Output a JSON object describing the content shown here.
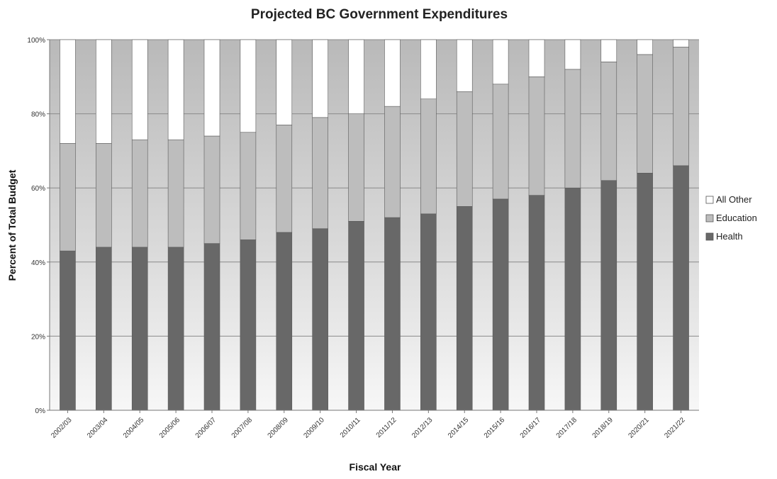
{
  "chart_data": {
    "type": "bar",
    "stacked": true,
    "percent_stacked": true,
    "title": "Projected BC Government Expenditures",
    "xlabel": "Fiscal Year",
    "ylabel": "Percent of Total Budget",
    "ylim": [
      0,
      100
    ],
    "yticks": [
      "0%",
      "20%",
      "40%",
      "60%",
      "80%",
      "100%"
    ],
    "ytick_values": [
      0,
      20,
      40,
      60,
      80,
      100
    ],
    "grid": true,
    "legend_position": "right",
    "categories": [
      "2002/03",
      "2003/04",
      "2004/05",
      "2005/06",
      "2006/07",
      "2007/08",
      "2008/09",
      "2009/10",
      "2010/11",
      "2011/12",
      "2012/13",
      "2014/15",
      "2015/16",
      "2016/17",
      "2017/18",
      "2018/19",
      "2020/21",
      "2021/22"
    ],
    "series": [
      {
        "name": "Health",
        "color": "#686868",
        "values": [
          43,
          44,
          44,
          44,
          45,
          46,
          48,
          49,
          51,
          52,
          53,
          55,
          57,
          58,
          60,
          62,
          64,
          66
        ]
      },
      {
        "name": "Education",
        "color": "#bdbdbd",
        "values": [
          29,
          28,
          29,
          29,
          29,
          29,
          29,
          30,
          29,
          30,
          31,
          31,
          31,
          32,
          32,
          32,
          32,
          32
        ]
      },
      {
        "name": "All Other",
        "color": "#ffffff",
        "values": [
          28,
          28,
          27,
          27,
          26,
          25,
          23,
          21,
          20,
          18,
          16,
          14,
          12,
          10,
          8,
          6,
          4,
          2
        ]
      }
    ],
    "legend_order": [
      "All Other",
      "Education",
      "Health"
    ]
  }
}
